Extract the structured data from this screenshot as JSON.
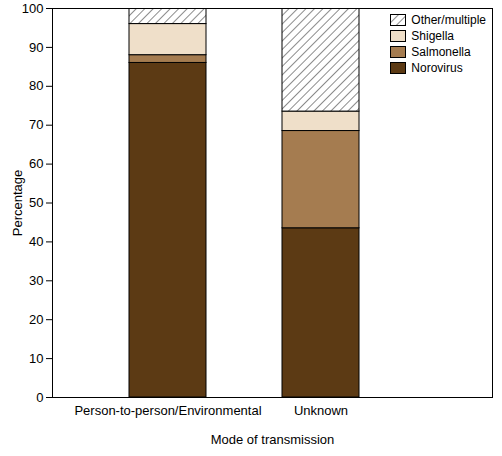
{
  "chart_data": {
    "type": "bar",
    "stacked": true,
    "categories": [
      "Person-to-person/Environmental",
      "Unknown"
    ],
    "series": [
      {
        "name": "Norovirus",
        "color": "#5c3a14",
        "values": [
          86,
          43.5
        ]
      },
      {
        "name": "Salmonella",
        "color": "#a57c50",
        "values": [
          2,
          25
        ]
      },
      {
        "name": "Shigella",
        "color": "#efdfc9",
        "values": [
          8,
          5
        ]
      },
      {
        "name": "Other/multiple",
        "color": "#8c8c8c",
        "marker": "hatch",
        "values": [
          4,
          26.5
        ]
      }
    ],
    "x_label": "Mode of transmission",
    "y_label": "Percentage",
    "ylim": [
      0,
      100
    ],
    "yticks": [
      0,
      10,
      20,
      30,
      40,
      50,
      60,
      70,
      80,
      90,
      100
    ],
    "grid": false,
    "legend": "top-right"
  }
}
